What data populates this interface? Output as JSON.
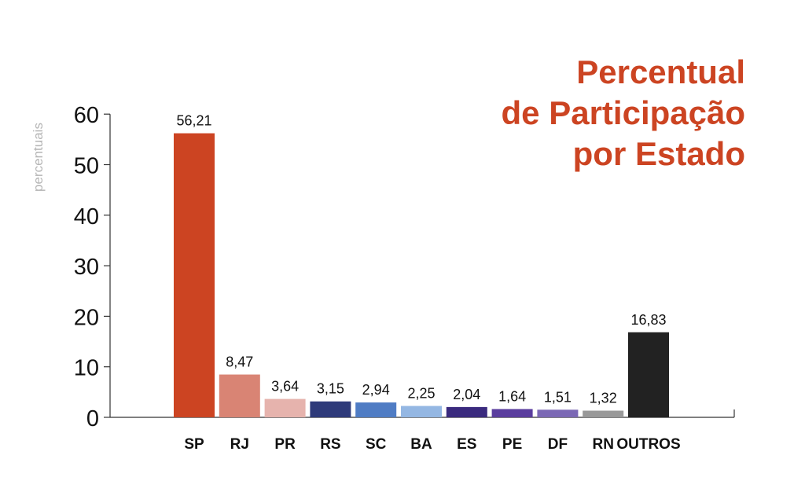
{
  "chart_data": {
    "type": "bar",
    "title": [
      "Percentual",
      "de Participação",
      "por Estado"
    ],
    "ylabel": "percentuais",
    "xlabel": "",
    "ylim": [
      0,
      60
    ],
    "yticks": [
      0,
      10,
      20,
      30,
      40,
      50,
      60
    ],
    "categories": [
      "SP",
      "RJ",
      "PR",
      "RS",
      "SC",
      "BA",
      "ES",
      "PE",
      "DF",
      "RN",
      "OUTROS"
    ],
    "values": [
      56.21,
      8.47,
      3.64,
      3.15,
      2.94,
      2.25,
      2.04,
      1.64,
      1.51,
      1.32,
      16.83
    ],
    "value_labels": [
      "56,21",
      "8,47",
      "3,64",
      "3,15",
      "2,94",
      "2,25",
      "2,04",
      "1,64",
      "1,51",
      "1,32",
      "16,83"
    ],
    "colors": [
      "#cc4422",
      "#d98474",
      "#e6b3ad",
      "#2e3a7a",
      "#4f7cc4",
      "#94b7e3",
      "#3a2a7e",
      "#5a3d9e",
      "#7b68b5",
      "#999999",
      "#222222"
    ],
    "title_color": "#cc4422",
    "grid": false
  }
}
